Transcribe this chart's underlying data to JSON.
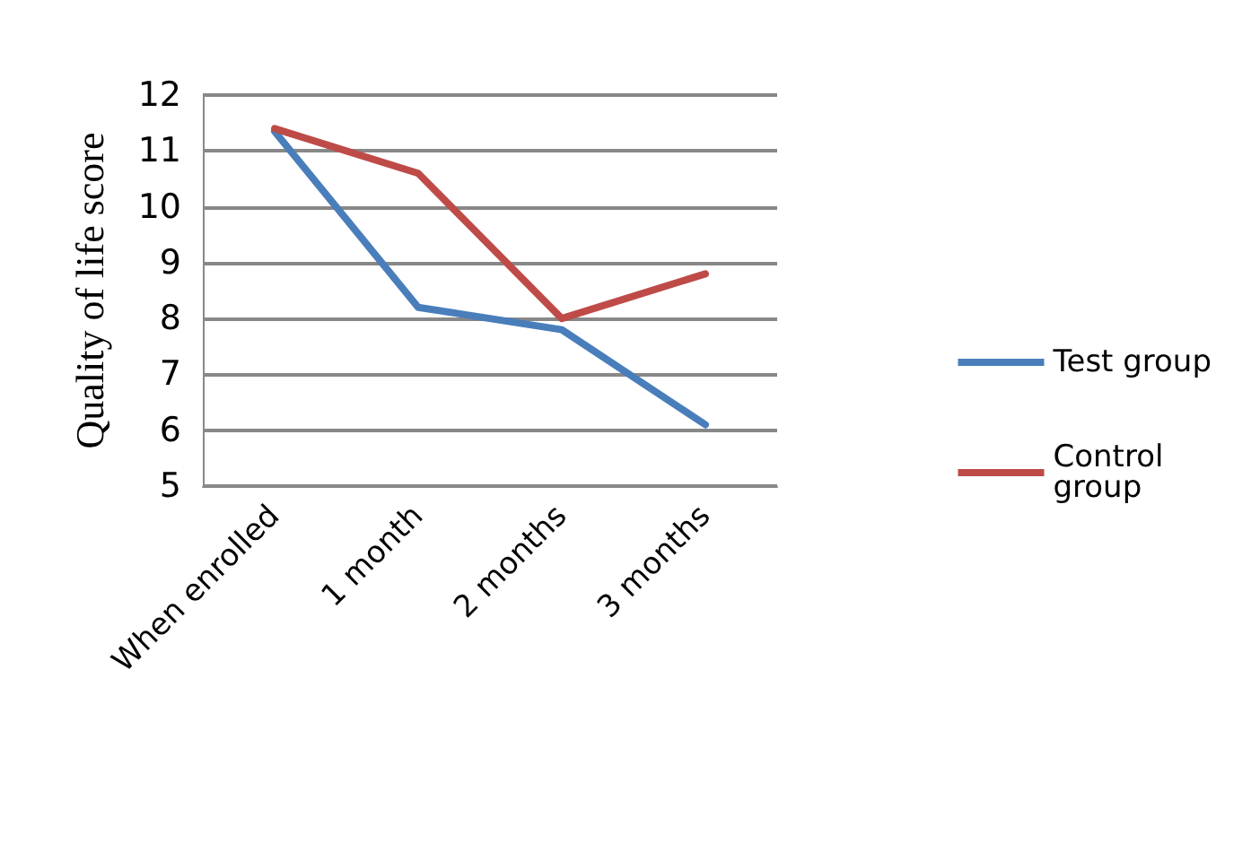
{
  "chart_data": {
    "type": "line",
    "ylabel": "Quality of life score",
    "categories": [
      "When enrolled",
      "1 month",
      "2 months",
      "3 months"
    ],
    "series": [
      {
        "name": "Test group",
        "color": "#4a7ebb",
        "values": [
          11.35,
          8.2,
          7.8,
          6.1
        ]
      },
      {
        "name": "Control group",
        "color": "#be4b48",
        "values": [
          11.4,
          10.6,
          8.0,
          8.8
        ]
      }
    ],
    "ylim": [
      5,
      12
    ],
    "yticks": [
      5,
      6,
      7,
      8,
      9,
      10,
      11,
      12
    ],
    "grid": "y",
    "legend": "right",
    "marker": "none",
    "line_style": "solid"
  }
}
